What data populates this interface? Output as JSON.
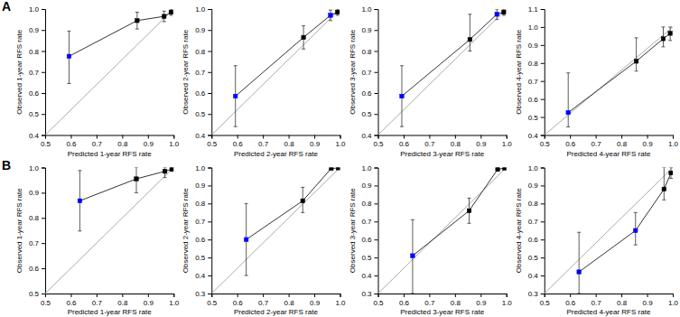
{
  "chart_data": [
    {
      "type": "scatter",
      "annotations": [
        "A"
      ],
      "xlabel": "Predicted 1-year RFS rate",
      "ylabel": "Observed 1-year RFS rate",
      "xlim": [
        0.5,
        1.0
      ],
      "ylim": [
        0.4,
        1.0
      ],
      "xticks": [
        0.5,
        0.6,
        0.7,
        0.8,
        0.9,
        {
          "value": 1.0,
          "label": "1.0"
        }
      ],
      "yticks": [
        0.4,
        0.5,
        0.6,
        0.7,
        0.8,
        0.9,
        {
          "value": 1.0,
          "label": "1.0"
        }
      ],
      "series": [
        {
          "type": "line",
          "color": "#aaaaaa",
          "x": [
            0.5,
            1.0
          ],
          "values": [
            0.4,
            1.0
          ]
        },
        {
          "type": "line",
          "marker": "square",
          "color": "#333333",
          "colors": [
            "blue",
            "black",
            "black",
            "black"
          ],
          "x": [
            0.593,
            0.858,
            0.963,
            0.99
          ],
          "values": [
            0.775,
            0.945,
            0.965,
            0.985
          ],
          "error_lo": [
            0.13,
            0.04,
            0.025,
            0.015
          ],
          "error_hi": [
            0.12,
            0.04,
            0.025,
            0.015
          ]
        }
      ]
    },
    {
      "type": "scatter",
      "xlabel": "Predicted 2-year RFS rate",
      "ylabel": "Observed 2-year RFS rate",
      "xlim": [
        0.5,
        1.0
      ],
      "ylim": [
        0.4,
        1.0
      ],
      "xticks": [
        0.5,
        0.6,
        0.7,
        0.8,
        0.9,
        {
          "value": 1.0,
          "label": "1.0"
        }
      ],
      "yticks": [
        0.4,
        0.5,
        0.6,
        0.7,
        0.8,
        0.9,
        {
          "value": 1.0,
          "label": "1.0"
        }
      ],
      "series": [
        {
          "type": "line",
          "color": "#aaaaaa",
          "x": [
            0.5,
            1.0
          ],
          "values": [
            0.4,
            1.0
          ]
        },
        {
          "type": "line",
          "marker": "square",
          "color": "#333333",
          "colors": [
            "blue",
            "black",
            "blue",
            "black"
          ],
          "x": [
            0.593,
            0.858,
            0.963,
            0.99
          ],
          "values": [
            0.585,
            0.865,
            0.97,
            0.985
          ],
          "error_lo": [
            0.145,
            0.055,
            0.025,
            0.015
          ],
          "error_hi": [
            0.145,
            0.055,
            0.025,
            0.015
          ]
        }
      ]
    },
    {
      "type": "scatter",
      "xlabel": "Predicted 3-year RFS rate",
      "ylabel": "Observed 3-year RFS rate",
      "xlim": [
        0.5,
        1.0
      ],
      "ylim": [
        0.4,
        1.0
      ],
      "xticks": [
        0.5,
        0.6,
        0.7,
        0.8,
        0.9,
        {
          "value": 1.0,
          "label": "1.0"
        }
      ],
      "yticks": [
        0.4,
        0.5,
        0.6,
        0.7,
        0.8,
        0.9,
        {
          "value": 1.0,
          "label": "1.0"
        }
      ],
      "series": [
        {
          "type": "line",
          "color": "#aaaaaa",
          "x": [
            0.5,
            1.0
          ],
          "values": [
            0.4,
            1.0
          ]
        },
        {
          "type": "line",
          "marker": "square",
          "color": "#333333",
          "colors": [
            "blue",
            "black",
            "blue",
            "black"
          ],
          "x": [
            0.593,
            0.858,
            0.963,
            0.99
          ],
          "values": [
            0.585,
            0.855,
            0.975,
            0.985
          ],
          "error_lo": [
            0.145,
            0.055,
            0.025,
            0.015
          ],
          "error_hi": [
            0.145,
            0.12,
            0.025,
            0.015
          ]
        }
      ]
    },
    {
      "type": "scatter",
      "xlabel": "Predicted 4-year RFS rate",
      "ylabel": "Observed 4-year RFS rate",
      "xlim": [
        0.5,
        1.0
      ],
      "ylim": [
        0.4,
        1.1
      ],
      "xticks": [
        0.5,
        0.6,
        0.7,
        0.8,
        0.9,
        {
          "value": 1.0,
          "label": "1.0"
        }
      ],
      "yticks": [
        0.4,
        0.5,
        0.6,
        0.7,
        0.8,
        0.9,
        {
          "value": 1.0,
          "label": "1.0"
        },
        1.1
      ],
      "series": [
        {
          "type": "line",
          "color": "#aaaaaa",
          "x": [
            0.5,
            1.0
          ],
          "values": [
            0.4,
            1.0
          ]
        },
        {
          "type": "line",
          "marker": "square",
          "color": "#333333",
          "colors": [
            "blue",
            "black",
            "black",
            "black"
          ],
          "x": [
            0.593,
            0.858,
            0.963,
            0.99
          ],
          "values": [
            0.525,
            0.81,
            0.935,
            0.965
          ],
          "error_lo": [
            0.08,
            0.055,
            0.045,
            0.04
          ],
          "error_hi": [
            0.22,
            0.13,
            0.065,
            0.035
          ]
        }
      ]
    },
    {
      "type": "scatter",
      "annotations": [
        "B"
      ],
      "xlabel": "Predicted 1-year RFS rate",
      "ylabel": "Observed 1-year RFS rate",
      "xlim": [
        0.5,
        1.0
      ],
      "ylim": [
        0.5,
        1.0
      ],
      "xticks": [
        0.5,
        0.6,
        0.7,
        0.8,
        0.9,
        {
          "value": 1.0,
          "label": "1.0"
        }
      ],
      "yticks": [
        0.5,
        0.6,
        0.7,
        0.8,
        0.9,
        {
          "value": 1.0,
          "label": "1.0"
        }
      ],
      "series": [
        {
          "type": "line",
          "color": "#aaaaaa",
          "x": [
            0.5,
            1.0
          ],
          "values": [
            0.5,
            1.0
          ]
        },
        {
          "type": "line",
          "marker": "square",
          "color": "#333333",
          "colors": [
            "blue",
            "black",
            "black",
            "black"
          ],
          "x": [
            0.635,
            0.855,
            0.966,
            0.993
          ],
          "values": [
            0.868,
            0.955,
            0.985,
            0.993
          ],
          "error_lo": [
            0.12,
            0.055,
            0.025,
            0.007
          ],
          "error_hi": [
            0.12,
            0.045,
            0.015,
            0.007
          ]
        }
      ]
    },
    {
      "type": "scatter",
      "xlabel": "Predicted 2-year RFS rate",
      "ylabel": "Observed 2-year RFS rate",
      "xlim": [
        0.5,
        1.0
      ],
      "ylim": [
        0.3,
        1.0
      ],
      "xticks": [
        0.5,
        0.6,
        0.7,
        0.8,
        0.9,
        {
          "value": 1.0,
          "label": "1.0"
        }
      ],
      "yticks": [
        0.3,
        0.4,
        0.5,
        0.6,
        0.7,
        0.8,
        0.9,
        {
          "value": 1.0,
          "label": "1.0"
        }
      ],
      "series": [
        {
          "type": "line",
          "color": "#aaaaaa",
          "x": [
            0.5,
            1.0
          ],
          "values": [
            0.3,
            1.0
          ]
        },
        {
          "type": "line",
          "marker": "square",
          "color": "#333333",
          "colors": [
            "blue",
            "black",
            "black",
            "black"
          ],
          "x": [
            0.635,
            0.855,
            0.966,
            0.993
          ],
          "values": [
            0.6,
            0.815,
            0.995,
            0.998
          ],
          "error_lo": [
            0.2,
            0.065,
            0.005,
            0.002
          ],
          "error_hi": [
            0.2,
            0.075,
            0.005,
            0.002
          ]
        }
      ]
    },
    {
      "type": "scatter",
      "xlabel": "Predicted 3-year RFS rate",
      "ylabel": "Observed 3-year RFS rate",
      "xlim": [
        0.5,
        1.0
      ],
      "ylim": [
        0.3,
        1.0
      ],
      "xticks": [
        0.5,
        0.6,
        0.7,
        0.8,
        0.9,
        {
          "value": 1.0,
          "label": "1.0"
        }
      ],
      "yticks": [
        0.3,
        0.4,
        0.5,
        0.6,
        0.7,
        0.8,
        0.9,
        {
          "value": 1.0,
          "label": "1.0"
        }
      ],
      "series": [
        {
          "type": "line",
          "color": "#aaaaaa",
          "x": [
            0.5,
            1.0
          ],
          "values": [
            0.3,
            1.0
          ]
        },
        {
          "type": "line",
          "marker": "square",
          "color": "#333333",
          "colors": [
            "blue",
            "black",
            "black",
            "black"
          ],
          "x": [
            0.635,
            0.855,
            0.966,
            0.993
          ],
          "values": [
            0.51,
            0.76,
            0.99,
            0.997
          ],
          "error_lo": [
            0.21,
            0.07,
            0.01,
            0.003
          ],
          "error_hi": [
            0.2,
            0.07,
            0.01,
            0.003
          ]
        }
      ]
    },
    {
      "type": "scatter",
      "xlabel": "Predicted 4-year RFS rate",
      "ylabel": "Observed 4-year RFS rate",
      "xlim": [
        0.5,
        1.0
      ],
      "ylim": [
        0.3,
        1.0
      ],
      "xticks": [
        0.5,
        0.6,
        0.7,
        0.8,
        0.9,
        {
          "value": 1.0,
          "label": "1.0"
        }
      ],
      "yticks": [
        0.3,
        0.4,
        0.5,
        0.6,
        0.7,
        0.8,
        0.9,
        {
          "value": 1.0,
          "label": "1.0"
        }
      ],
      "series": [
        {
          "type": "line",
          "color": "#aaaaaa",
          "x": [
            0.5,
            1.0
          ],
          "values": [
            0.3,
            1.0
          ]
        },
        {
          "type": "line",
          "marker": "square",
          "color": "#333333",
          "colors": [
            "blue",
            "blue",
            "black",
            "black"
          ],
          "x": [
            0.635,
            0.855,
            0.966,
            0.993
          ],
          "values": [
            0.42,
            0.65,
            0.88,
            0.97
          ],
          "error_lo": [
            0.12,
            0.08,
            0.06,
            0.03
          ],
          "error_hi": [
            0.22,
            0.1,
            0.12,
            0.03
          ]
        }
      ]
    }
  ]
}
